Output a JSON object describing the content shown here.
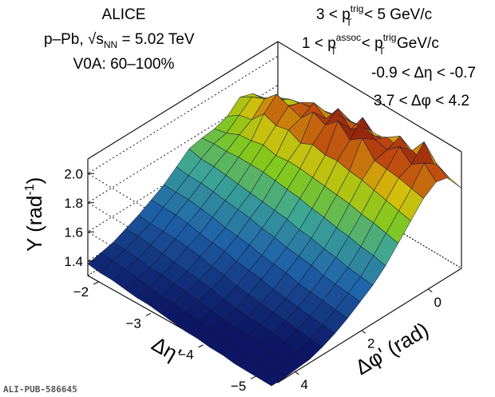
{
  "header": {
    "collaboration": "ALICE",
    "system": "p–Pb, √s",
    "system_sub": "NN",
    "system_energy": " = 5.02 TeV",
    "centrality": "V0A: 60–100%"
  },
  "cuts": {
    "trig_prefix": "3 < p",
    "trig_sup": "trig",
    "trig_sub": "T",
    "trig_suffix": " < 5 GeV/c",
    "assoc_prefix": "1 < p",
    "assoc_sup1": "assoc",
    "assoc_sub1": "T",
    "assoc_mid": " < p",
    "assoc_sup2": "trig",
    "assoc_sub2": "T",
    "assoc_suffix": " GeV/c",
    "deta": "-0.9 < Δη < -0.7",
    "dphi": "3.7 < Δφ < 4.2"
  },
  "footer": {
    "pub_id": "ALI-PUB-586645"
  },
  "colors": {
    "low": "#0d1a6e",
    "mid_low": "#2f7fb8",
    "mid": "#7fc41e",
    "mid_high": "#e0b000",
    "high": "#8a1a10"
  },
  "chart_data": {
    "type": "surface",
    "title": "",
    "zlabel": "Y (rad",
    "zlabel_sup": "-1",
    "zlabel_suffix": ")",
    "xlabel": "Δφ' (rad)",
    "ylabel": "Δη'",
    "z_ticks": [
      "1.4",
      "1.6",
      "1.8",
      "2.0"
    ],
    "x_ticks": [
      "0",
      "2",
      "4"
    ],
    "y_ticks": [
      "−2",
      "−3",
      "−4",
      "−5"
    ],
    "x_range": [
      -1.0,
      4.7
    ],
    "y_range": [
      -5.3,
      -1.8
    ],
    "z_range": [
      1.3,
      2.1
    ],
    "dphi_points": [
      -1.0,
      -0.62,
      -0.24,
      0.14,
      0.52,
      0.9,
      1.28,
      1.66,
      2.04,
      2.42,
      2.8,
      3.18,
      3.56,
      3.94,
      4.32,
      4.7
    ],
    "deta_points": [
      -1.8,
      -2.03,
      -2.27,
      -2.5,
      -2.73,
      -2.97,
      -3.2,
      -3.43,
      -3.67,
      -3.9,
      -4.13,
      -4.37,
      -4.6,
      -4.83,
      -5.07,
      -5.3
    ],
    "yield_grid": [
      [
        1.7,
        1.76,
        1.85,
        1.88,
        1.8,
        1.77,
        1.76,
        1.74,
        1.67,
        1.6,
        1.55,
        1.5,
        1.46,
        1.42,
        1.4,
        1.38
      ],
      [
        1.74,
        1.82,
        1.87,
        1.93,
        1.86,
        1.79,
        1.77,
        1.72,
        1.66,
        1.6,
        1.55,
        1.49,
        1.46,
        1.42,
        1.4,
        1.37
      ],
      [
        1.77,
        1.86,
        1.9,
        1.97,
        1.88,
        1.83,
        1.77,
        1.72,
        1.66,
        1.6,
        1.55,
        1.49,
        1.45,
        1.41,
        1.39,
        1.37
      ],
      [
        1.79,
        1.88,
        1.92,
        2.05,
        1.97,
        1.84,
        1.78,
        1.71,
        1.65,
        1.59,
        1.54,
        1.49,
        1.44,
        1.4,
        1.38,
        1.36
      ],
      [
        1.82,
        1.9,
        1.99,
        2.02,
        1.94,
        1.86,
        1.78,
        1.7,
        1.64,
        1.58,
        1.52,
        1.48,
        1.43,
        1.4,
        1.37,
        1.35
      ],
      [
        1.84,
        1.92,
        2.04,
        1.99,
        1.96,
        1.84,
        1.78,
        1.69,
        1.63,
        1.56,
        1.51,
        1.47,
        1.42,
        1.39,
        1.36,
        1.35
      ],
      [
        1.85,
        1.95,
        1.98,
        2.08,
        1.92,
        1.85,
        1.77,
        1.68,
        1.62,
        1.55,
        1.5,
        1.45,
        1.41,
        1.38,
        1.36,
        1.34
      ],
      [
        1.86,
        1.96,
        2.1,
        2.04,
        1.96,
        1.85,
        1.76,
        1.67,
        1.6,
        1.54,
        1.48,
        1.44,
        1.4,
        1.37,
        1.35,
        1.33
      ],
      [
        1.87,
        1.97,
        2.01,
        2.12,
        1.94,
        1.84,
        1.75,
        1.66,
        1.59,
        1.52,
        1.47,
        1.42,
        1.38,
        1.36,
        1.34,
        1.32
      ],
      [
        1.88,
        1.96,
        2.14,
        2.04,
        1.95,
        1.83,
        1.73,
        1.64,
        1.57,
        1.51,
        1.46,
        1.41,
        1.37,
        1.35,
        1.33,
        1.32
      ],
      [
        1.87,
        2.0,
        2.04,
        2.1,
        1.93,
        1.82,
        1.72,
        1.63,
        1.56,
        1.5,
        1.44,
        1.4,
        1.36,
        1.34,
        1.32,
        1.31
      ],
      [
        1.88,
        2.06,
        2.02,
        2.0,
        1.92,
        1.81,
        1.7,
        1.61,
        1.55,
        1.48,
        1.43,
        1.39,
        1.36,
        1.34,
        1.32,
        1.31
      ],
      [
        1.88,
        2.01,
        2.09,
        1.99,
        1.9,
        1.79,
        1.69,
        1.6,
        1.53,
        1.47,
        1.42,
        1.38,
        1.35,
        1.33,
        1.31,
        1.3
      ],
      [
        1.87,
        2.12,
        2.02,
        1.98,
        1.88,
        1.78,
        1.67,
        1.58,
        1.52,
        1.46,
        1.41,
        1.37,
        1.34,
        1.32,
        1.31,
        1.3
      ],
      [
        1.86,
        2.02,
        2.08,
        1.96,
        1.86,
        1.76,
        1.66,
        1.57,
        1.51,
        1.45,
        1.4,
        1.36,
        1.33,
        1.31,
        1.3,
        1.3
      ],
      [
        1.85,
        1.98,
        2.0,
        1.94,
        1.84,
        1.74,
        1.64,
        1.56,
        1.5,
        1.44,
        1.39,
        1.35,
        1.32,
        1.31,
        1.3,
        1.3
      ]
    ]
  }
}
